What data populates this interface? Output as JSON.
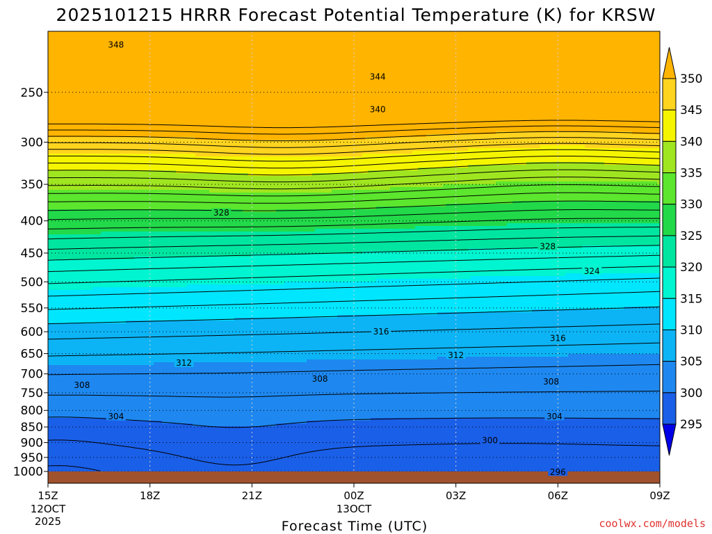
{
  "chart_data": {
    "type": "heatmap",
    "title": "2025101215 HRRR Forecast Potential Temperature (K) for KRSW",
    "xlabel": "Forecast Time (UTC)",
    "ylabel": "",
    "credit": "coolwx.com/models",
    "x_ticks": [
      "15Z",
      "18Z",
      "21Z",
      "00Z",
      "03Z",
      "06Z",
      "09Z"
    ],
    "x_ticks_sub": [
      "12OCT",
      "",
      "",
      "13OCT",
      "",
      "",
      ""
    ],
    "x_ticks_sub2": [
      "2025",
      "",
      "",
      "",
      "",
      "",
      ""
    ],
    "x_hours": [
      0,
      3,
      6,
      9,
      12,
      15,
      18
    ],
    "y_ticks": [
      250,
      300,
      350,
      400,
      450,
      500,
      550,
      600,
      650,
      700,
      750,
      800,
      850,
      900,
      950,
      1000
    ],
    "y_range": [
      200,
      1000
    ],
    "y_scale": "log-pressure",
    "grid": true,
    "colorbar": {
      "levels": [
        295,
        300,
        305,
        310,
        315,
        320,
        325,
        330,
        335,
        340,
        345,
        350
      ],
      "colors": [
        "#0000e6",
        "#1a5fe8",
        "#1e88f0",
        "#0cb4f5",
        "#00e6ff",
        "#00f5d0",
        "#00e6a0",
        "#22d94a",
        "#5ce62e",
        "#a0e620",
        "#f5f500",
        "#ffd41e",
        "#ffb400"
      ],
      "labels": [
        "295",
        "300",
        "305",
        "310",
        "315",
        "320",
        "325",
        "330",
        "335",
        "340",
        "345",
        "350"
      ]
    },
    "ground_color": "#a0522d",
    "contour_labels": [
      {
        "text": "348",
        "hour": 2.0,
        "pres": 210
      },
      {
        "text": "344",
        "hour": 9.7,
        "pres": 236
      },
      {
        "text": "340",
        "hour": 9.7,
        "pres": 266
      },
      {
        "text": "328",
        "hour": 5.1,
        "pres": 388
      },
      {
        "text": "328",
        "hour": 14.7,
        "pres": 439
      },
      {
        "text": "324",
        "hour": 16.0,
        "pres": 480
      },
      {
        "text": "316",
        "hour": 9.8,
        "pres": 599
      },
      {
        "text": "316",
        "hour": 15.0,
        "pres": 614
      },
      {
        "text": "312",
        "hour": 12.0,
        "pres": 653
      },
      {
        "text": "312",
        "hour": 4.0,
        "pres": 672
      },
      {
        "text": "308",
        "hour": 1.0,
        "pres": 729
      },
      {
        "text": "308",
        "hour": 8.0,
        "pres": 712
      },
      {
        "text": "308",
        "hour": 14.8,
        "pres": 719
      },
      {
        "text": "304",
        "hour": 2.0,
        "pres": 817
      },
      {
        "text": "304",
        "hour": 14.9,
        "pres": 817
      },
      {
        "text": "300",
        "hour": 13.0,
        "pres": 892
      },
      {
        "text": "296",
        "hour": 15.0,
        "pres": 1001
      }
    ]
  }
}
